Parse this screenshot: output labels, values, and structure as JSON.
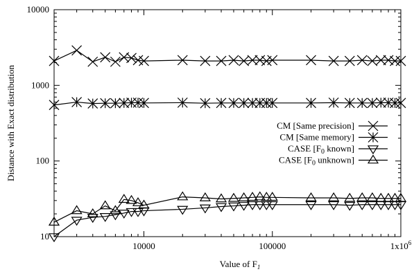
{
  "chart_data": {
    "type": "line",
    "xlabel": "Value of F",
    "xlabel_sub": "1",
    "ylabel": "Distance with Exact distribution",
    "xscale": "log",
    "yscale": "log",
    "xlim": [
      2000,
      1000000
    ],
    "ylim": [
      10,
      10000
    ],
    "grid": false,
    "legend_position": "right",
    "x_ticks": [
      {
        "value": 10000,
        "label": "10000"
      },
      {
        "value": 100000,
        "label": "100000"
      },
      {
        "value": 1000000,
        "label": "1x10",
        "sup": "6"
      }
    ],
    "y_ticks": [
      {
        "value": 10,
        "label": "10"
      },
      {
        "value": 100,
        "label": "100"
      },
      {
        "value": 1000,
        "label": "1000"
      },
      {
        "value": 10000,
        "label": "10000"
      }
    ],
    "x": [
      2000,
      3000,
      4000,
      5000,
      6000,
      7000,
      8000,
      9000,
      10000,
      20000,
      30000,
      40000,
      50000,
      60000,
      70000,
      80000,
      90000,
      100000,
      200000,
      300000,
      400000,
      500000,
      600000,
      700000,
      800000,
      900000,
      1000000
    ],
    "series": [
      {
        "name": "CM [Same precision]",
        "marker": "x",
        "values": [
          2100,
          2900,
          2050,
          2350,
          2050,
          2350,
          2300,
          2150,
          2100,
          2150,
          2100,
          2100,
          2150,
          2100,
          2150,
          2150,
          2100,
          2150,
          2150,
          2100,
          2100,
          2150,
          2100,
          2150,
          2150,
          2100,
          2100
        ]
      },
      {
        "name": "CM [Same memory]",
        "marker": "asterisk",
        "values": [
          550,
          600,
          575,
          580,
          580,
          585,
          590,
          590,
          585,
          590,
          580,
          585,
          585,
          585,
          585,
          585,
          585,
          585,
          585,
          590,
          585,
          585,
          585,
          590,
          590,
          585,
          585
        ]
      },
      {
        "name": "CASE [F",
        "name_sub": "0",
        "name_suffix": " known]",
        "marker": "triangle-down",
        "values": [
          10,
          16.5,
          18,
          18.5,
          19.5,
          20.5,
          21.5,
          21.5,
          22,
          23,
          24,
          25,
          25.5,
          26,
          26.5,
          26.5,
          26.5,
          26.5,
          26.5,
          26.5,
          26,
          26.5,
          26.5,
          26.5,
          26.5,
          26.5,
          26.5
        ]
      },
      {
        "name": "CASE [F",
        "name_sub": "0",
        "name_suffix": " unknown]",
        "marker": "triangle-up",
        "values": [
          15.5,
          22,
          20,
          25.5,
          22,
          31,
          30,
          28,
          26,
          33.5,
          32.5,
          31.5,
          32,
          32.5,
          33,
          33.5,
          33,
          33,
          32.5,
          32.5,
          32,
          32.5,
          32.5,
          32,
          32,
          32,
          32
        ]
      }
    ]
  }
}
